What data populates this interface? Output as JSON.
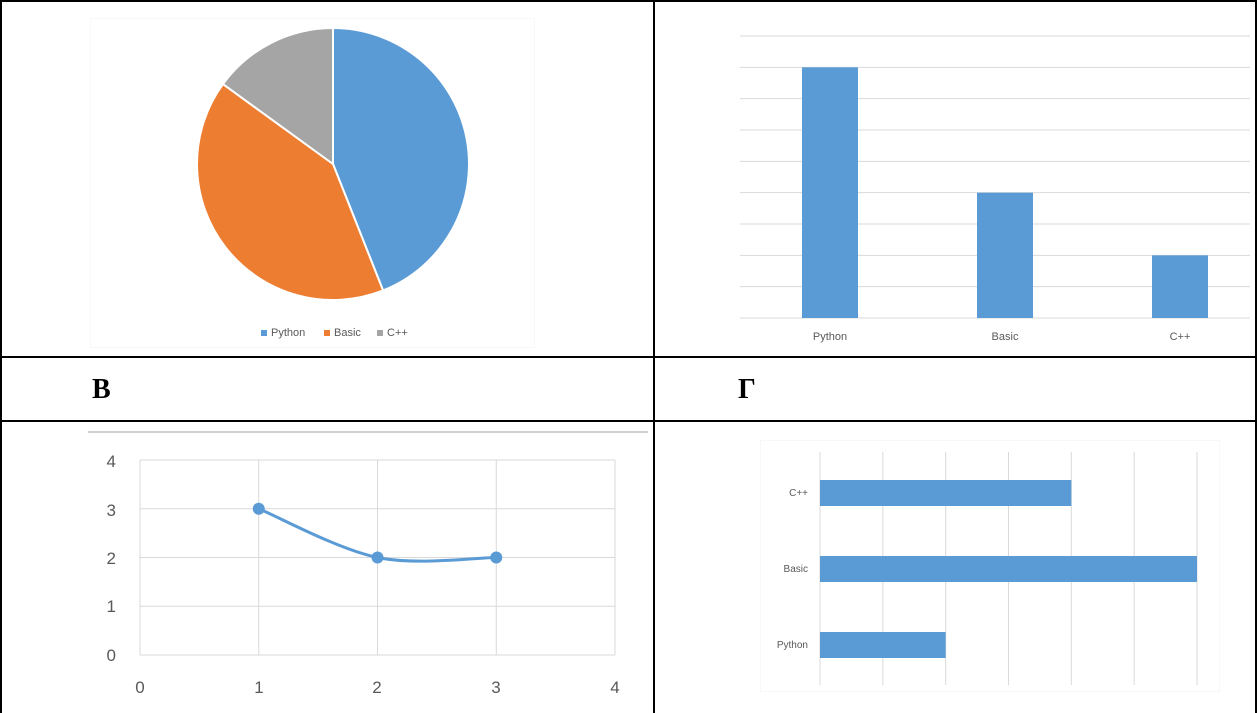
{
  "labels": {
    "row_left": "В",
    "row_right": "Г"
  },
  "colors": {
    "blue": "#5B9BD5",
    "orange": "#ED7D31",
    "gray": "#A5A5A5",
    "grid": "#D9D9D9",
    "axis_text": "#595959"
  },
  "chart_data": [
    {
      "type": "pie",
      "categories": [
        "Python",
        "Basic",
        "C++"
      ],
      "values": [
        44,
        41,
        15
      ],
      "legend_position": "bottom"
    },
    {
      "type": "bar",
      "categories": [
        "Python",
        "Basic",
        "C++"
      ],
      "values": [
        8,
        4,
        2
      ],
      "ylim": [
        0,
        9
      ],
      "grid": true
    },
    {
      "type": "line",
      "x": [
        1,
        2,
        3
      ],
      "y": [
        3,
        2,
        2
      ],
      "xlim": [
        0,
        4
      ],
      "ylim": [
        0,
        4
      ],
      "xticks": [
        "0",
        "1",
        "2",
        "3",
        "4"
      ],
      "yticks": [
        "0",
        "1",
        "2",
        "3",
        "4"
      ],
      "smooth": true,
      "grid": true
    },
    {
      "type": "bar",
      "orientation": "horizontal",
      "categories": [
        "C++",
        "Basic",
        "Python"
      ],
      "values": [
        4,
        6,
        2
      ],
      "xlim": [
        0,
        6
      ],
      "grid": true
    }
  ]
}
